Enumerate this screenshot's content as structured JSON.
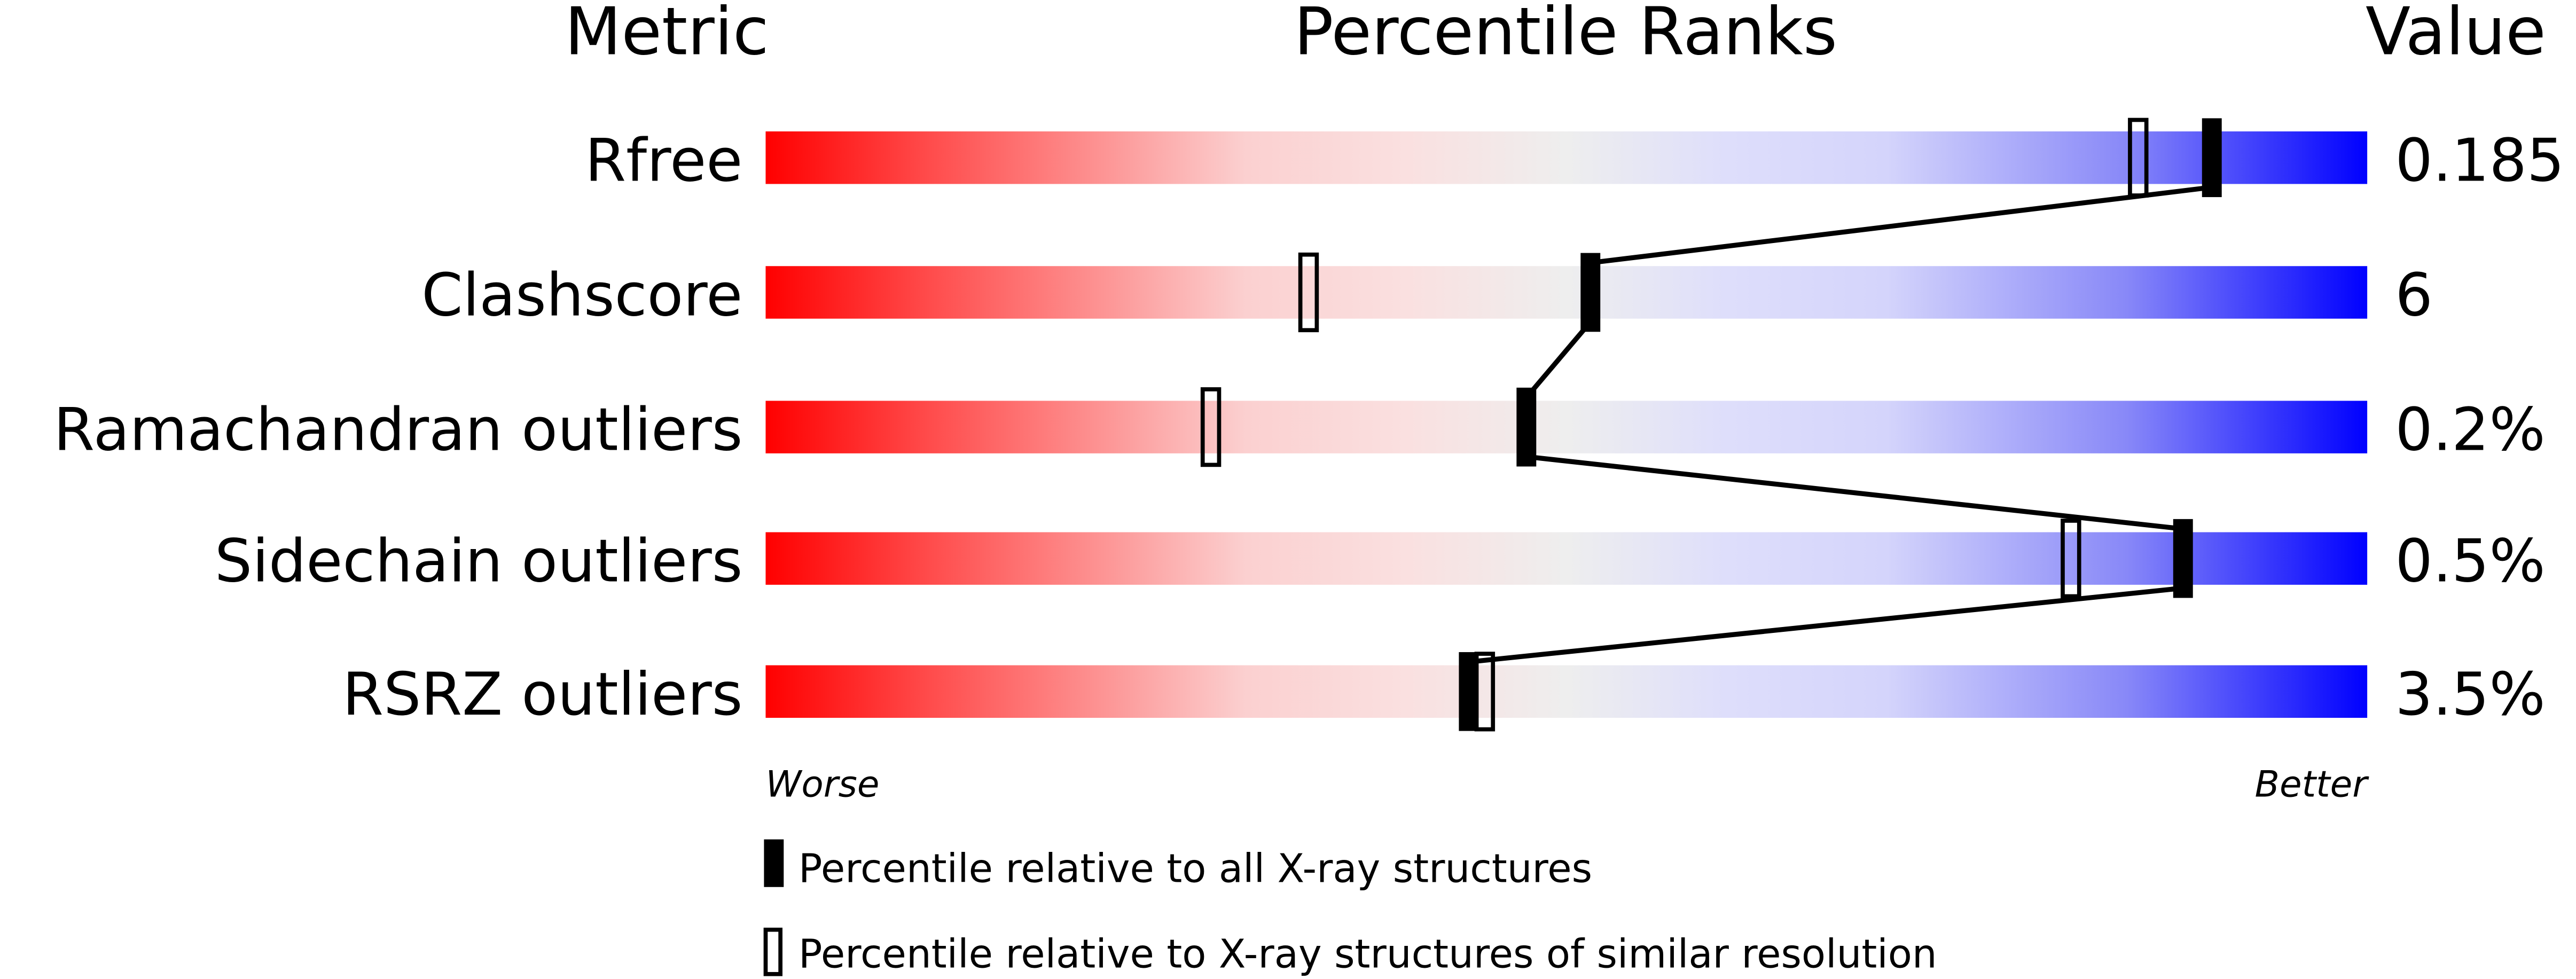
{
  "chart_data": {
    "type": "bar",
    "title": "",
    "headers": {
      "metric": "Metric",
      "ranks": "Percentile Ranks",
      "value": "Value"
    },
    "xlim": [
      0,
      100
    ],
    "axis_labels": {
      "left": "Worse",
      "right": "Better"
    },
    "metrics": [
      {
        "name": "Rfree",
        "value": "0.185",
        "percentile_all": 90.3,
        "percentile_similar": 85.7
      },
      {
        "name": "Clashscore",
        "value": "6",
        "percentile_all": 51.5,
        "percentile_similar": 33.9
      },
      {
        "name": "Ramachandran outliers",
        "value": "0.2%",
        "percentile_all": 47.5,
        "percentile_similar": 27.8
      },
      {
        "name": "Sidechain outliers",
        "value": "0.5%",
        "percentile_all": 88.5,
        "percentile_similar": 81.5
      },
      {
        "name": "RSRZ outliers",
        "value": "3.5%",
        "percentile_all": 43.9,
        "percentile_similar": 44.9
      }
    ],
    "legend": {
      "placement": "bottom",
      "filled": "Percentile relative to all X-ray structures",
      "open": "Percentile relative to X-ray structures of similar resolution"
    },
    "colors": {
      "worse": "#ff0000",
      "middle": "#eeeeee",
      "better": "#0000ff",
      "marker": "#000000"
    }
  }
}
